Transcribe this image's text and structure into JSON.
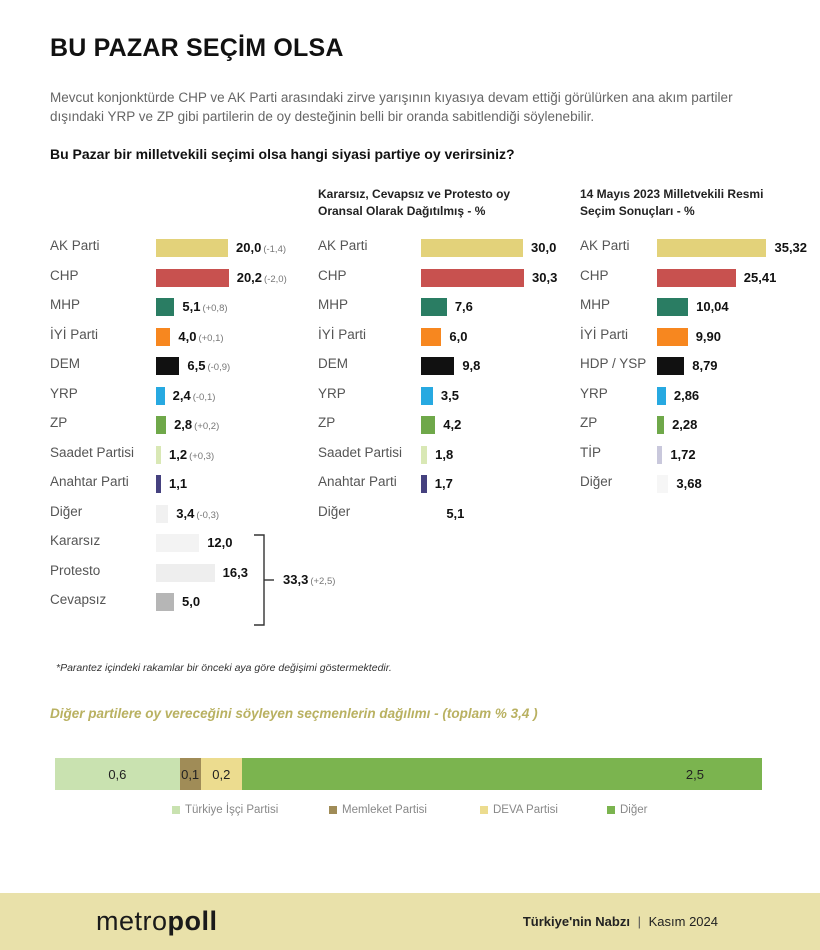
{
  "title": "BU PAZAR SEÇİM OLSA",
  "intro": "Mevcut konjonktürde CHP ve AK Parti arasındaki zirve yarışının kıyasıya devam ettiği görülürken ana akım partiler dışındaki YRP ve ZP gibi partilerin de oy desteğinin belli bir oranda sabitlendiği söylenebilir.",
  "question": "Bu Pazar bir milletvekili seçimi olsa hangi siyasi partiye oy verirsiniz?",
  "footnote": "*Parantez içindeki rakamlar bir önceki aya göre değişimi göstermektedir.",
  "footer": {
    "logo_a": "metro",
    "logo_b": "poll",
    "brand": "Türkiye'nin Nabzı",
    "sep": "|",
    "date": "Kasım 2024"
  },
  "chart_data": [
    {
      "type": "bar",
      "title": "",
      "categories": [
        "AK Parti",
        "CHP",
        "MHP",
        "İYİ Parti",
        "DEM",
        "YRP",
        "ZP",
        "Saadet Partisi",
        "Anahtar Parti",
        "Diğer",
        "Kararsız",
        "Protesto",
        "Cevapsız"
      ],
      "values": [
        20.0,
        20.2,
        5.1,
        4.0,
        6.5,
        2.4,
        2.8,
        1.2,
        1.1,
        3.4,
        12.0,
        16.3,
        5.0
      ],
      "value_labels": [
        "20,0",
        "20,2",
        "5,1",
        "4,0",
        "6,5",
        "2,4",
        "2,8",
        "1,2",
        "1,1",
        "3,4",
        "12,0",
        "16,3",
        "5,0"
      ],
      "changes": [
        "(-1,4)",
        "(-2,0)",
        "(+0,8)",
        "(+0,1)",
        "(-0,9)",
        "(-0,1)",
        "(+0,2)",
        "(+0,3)",
        "",
        "(-0,3)",
        "",
        "",
        ""
      ],
      "colors": [
        "#e3d27a",
        "#c8514f",
        "#2a7d63",
        "#f7871f",
        "#111111",
        "#27a9e1",
        "#6fa84a",
        "#d9e8b5",
        "#45417f",
        "#f1f1f1",
        "#f3f3f3",
        "#eeeeee",
        "#b6b6b6"
      ],
      "group_total": {
        "value": "33,3",
        "change": "(+2,5)"
      }
    },
    {
      "type": "bar",
      "title": "Kararsız, Cevapsız ve Protesto oy Oransal Olarak Dağıtılmış - %",
      "categories": [
        "AK Parti",
        "CHP",
        "MHP",
        "İYİ Parti",
        "DEM",
        "YRP",
        "ZP",
        "Saadet Partisi",
        "Anahtar Parti",
        "Diğer"
      ],
      "values": [
        30.0,
        30.3,
        7.6,
        6.0,
        9.8,
        3.5,
        4.2,
        1.8,
        1.7,
        5.1
      ],
      "value_labels": [
        "30,0",
        "30,3",
        "7,6",
        "6,0",
        "9,8",
        "3,5",
        "4,2",
        "1,8",
        "1,7",
        "5,1"
      ],
      "colors": [
        "#e3d27a",
        "#c8514f",
        "#2a7d63",
        "#f7871f",
        "#111111",
        "#27a9e1",
        "#6fa84a",
        "#d9e8b5",
        "#45417f",
        "#ffffff"
      ]
    },
    {
      "type": "bar",
      "title": "14 Mayıs 2023 Milletvekili Resmi Seçim Sonuçları - %",
      "categories": [
        "AK Parti",
        "CHP",
        "MHP",
        "İYİ Parti",
        "HDP / YSP",
        "YRP",
        "ZP",
        "TİP",
        "Diğer"
      ],
      "values": [
        35.32,
        25.41,
        10.04,
        9.9,
        8.79,
        2.86,
        2.28,
        1.72,
        3.68
      ],
      "value_labels": [
        "35,32",
        "25,41",
        "10,04",
        "9,90",
        "8,79",
        "2,86",
        "2,28",
        "1,72",
        "3,68"
      ],
      "colors": [
        "#e3d27a",
        "#c8514f",
        "#2a7d63",
        "#f7871f",
        "#111111",
        "#27a9e1",
        "#6fa84a",
        "#c9c8dc",
        "#f6f6f6"
      ]
    },
    {
      "type": "bar",
      "subtype": "stacked-horizontal",
      "title": "Diğer partilere oy vereceğini söyleyen seçmenlerin dağılımı -  (toplam % 3,4 )",
      "categories": [
        "Türkiye İşçi Partisi",
        "Memleket Partisi",
        "DEVA Partisi",
        "Diğer"
      ],
      "values": [
        0.6,
        0.1,
        0.2,
        2.5
      ],
      "value_labels": [
        "0,6",
        "0,1",
        "0,2",
        "2,5"
      ],
      "colors": [
        "#c9e2b0",
        "#a08c57",
        "#ecdc8f",
        "#7bb44f"
      ]
    }
  ]
}
